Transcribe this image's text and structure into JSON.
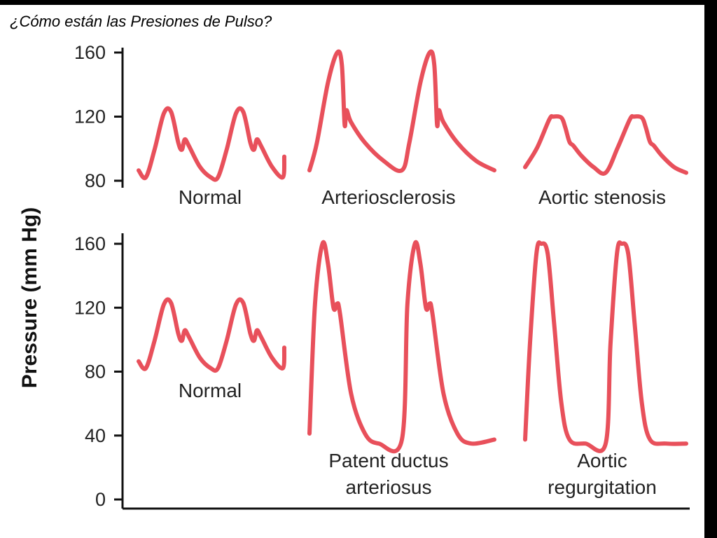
{
  "caption": "¿Cómo están las Presiones de Pulso?",
  "chart_data": {
    "type": "line",
    "ylabel": "Pressure (mm Hg)",
    "color": "#e8505b",
    "panels": [
      {
        "name": "top",
        "yticks": [
          80,
          120,
          160
        ],
        "waveforms": [
          {
            "label": [
              "Normal"
            ],
            "shape": "normal",
            "min": 80,
            "max": 123
          },
          {
            "label": [
              "Arteriosclerosis"
            ],
            "shape": "arteriosclerosis",
            "min": 85,
            "max": 160
          },
          {
            "label": [
              "Aortic stenosis"
            ],
            "shape": "stenosis",
            "min": 85,
            "max": 120
          }
        ]
      },
      {
        "name": "bottom",
        "yticks": [
          0,
          40,
          80,
          120,
          160
        ],
        "waveforms": [
          {
            "label": [
              "Normal"
            ],
            "shape": "normal",
            "min": 80,
            "max": 123
          },
          {
            "label": [
              "Patent ductus",
              "arteriosus"
            ],
            "shape": "pda",
            "min": 35,
            "max": 160
          },
          {
            "label": [
              "Aortic",
              "regurgitation"
            ],
            "shape": "regurgitation",
            "min": 35,
            "max": 160
          }
        ]
      }
    ]
  }
}
